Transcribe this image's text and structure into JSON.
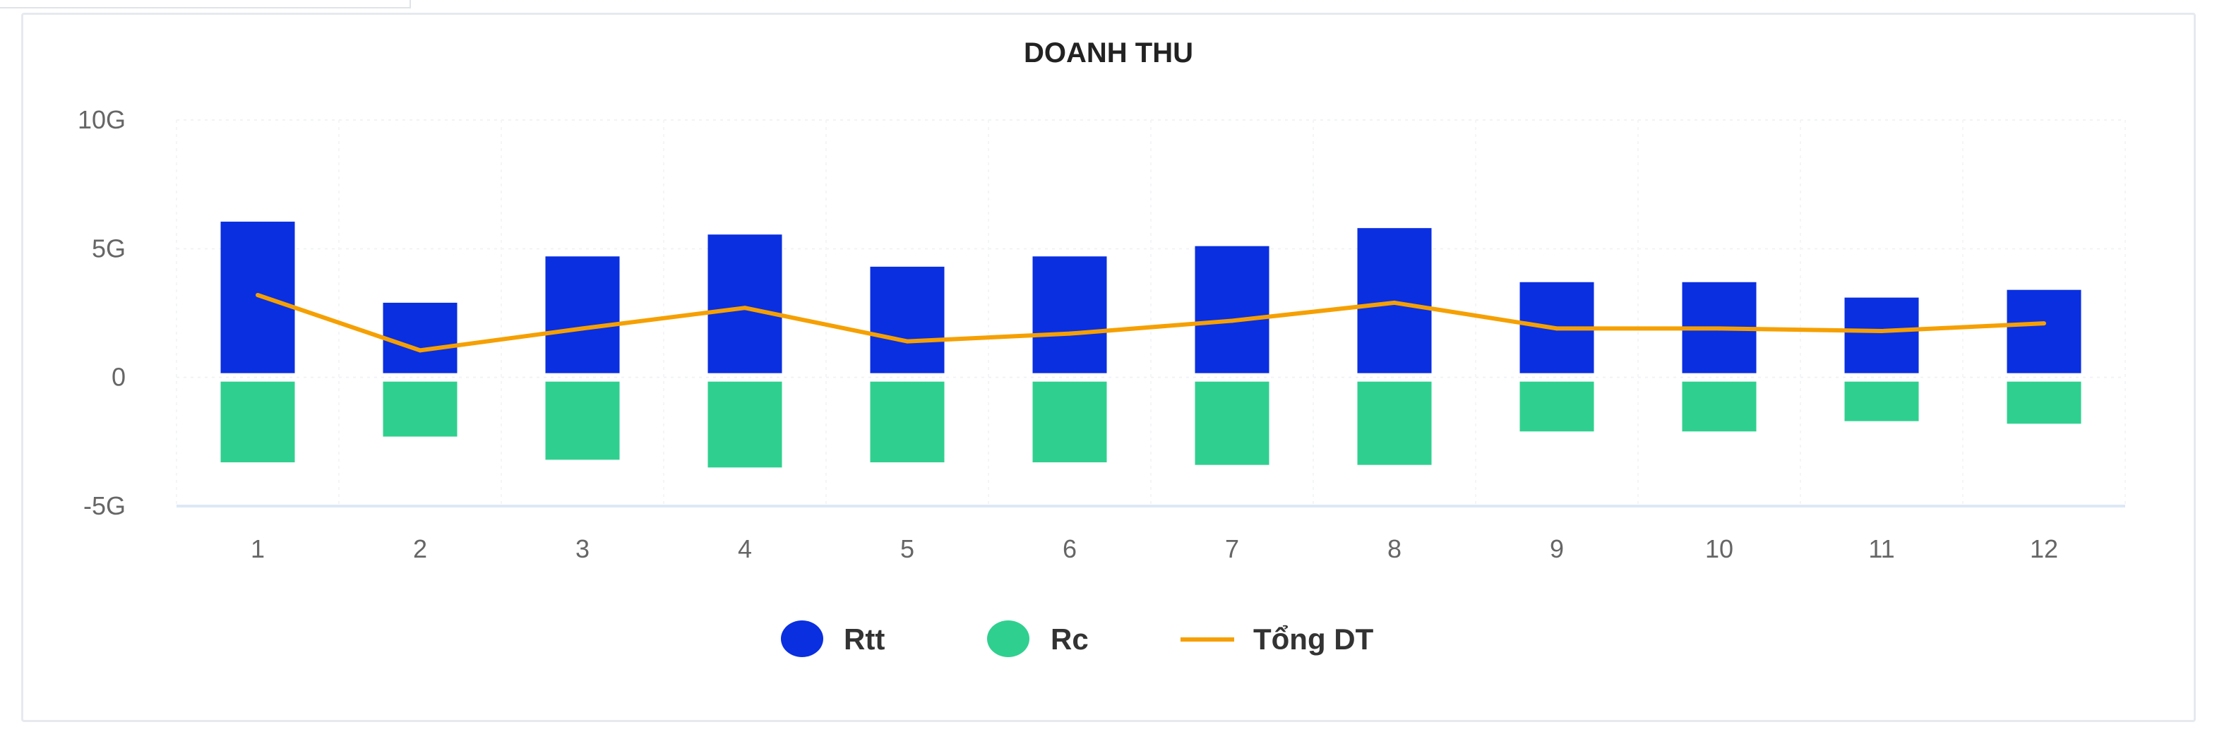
{
  "chart_data": {
    "type": "bar",
    "title": "DOANH THU",
    "categories": [
      "1",
      "2",
      "3",
      "4",
      "5",
      "6",
      "7",
      "8",
      "9",
      "10",
      "11",
      "12"
    ],
    "ylim": [
      -5,
      10
    ],
    "yticks": [
      {
        "value": 10,
        "label": "10G"
      },
      {
        "value": 5,
        "label": "5G"
      },
      {
        "value": 0,
        "label": "0"
      },
      {
        "value": -5,
        "label": "-5G"
      }
    ],
    "unit": "G",
    "grid": true,
    "legend_position": "bottom",
    "series": [
      {
        "name": "Rtt",
        "type": "bar",
        "color": "#0a2fe0",
        "values": [
          6.05,
          2.9,
          4.7,
          5.55,
          4.3,
          4.7,
          5.1,
          5.8,
          3.7,
          3.7,
          3.1,
          3.4
        ]
      },
      {
        "name": "Rc",
        "type": "bar",
        "color": "#2fd08f",
        "values": [
          -3.3,
          -2.3,
          -3.2,
          -3.5,
          -3.3,
          -3.3,
          -3.4,
          -3.4,
          -2.1,
          -2.1,
          -1.7,
          -1.8
        ]
      },
      {
        "name": "Tổng DT",
        "type": "line",
        "color": "#f5a000",
        "values": [
          3.2,
          1.05,
          1.9,
          2.7,
          1.4,
          1.7,
          2.2,
          2.9,
          1.9,
          1.9,
          1.8,
          2.1
        ]
      }
    ]
  }
}
